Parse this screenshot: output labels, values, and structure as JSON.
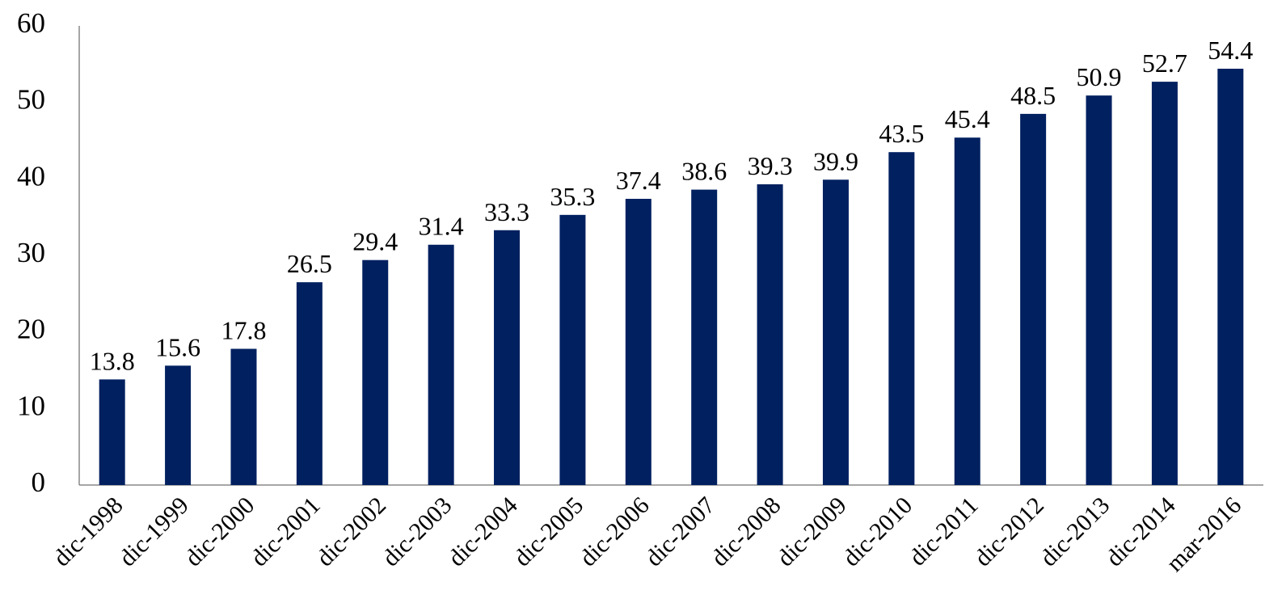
{
  "chart_data": {
    "type": "bar",
    "categories": [
      "dic-1998",
      "dic-1999",
      "dic-2000",
      "dic-2001",
      "dic-2002",
      "dic-2003",
      "dic-2004",
      "dic-2005",
      "dic-2006",
      "dic-2007",
      "dic-2008",
      "dic-2009",
      "dic-2010",
      "dic-2011",
      "dic-2012",
      "dic-2013",
      "dic-2014",
      "mar-2016"
    ],
    "values": [
      13.8,
      15.6,
      17.8,
      26.5,
      29.4,
      31.4,
      33.3,
      35.3,
      37.4,
      38.6,
      39.3,
      39.9,
      43.5,
      45.4,
      48.5,
      50.9,
      52.7,
      54.4
    ],
    "color": "#002060",
    "ylim": [
      0,
      60
    ],
    "yticks": [
      0,
      10,
      20,
      30,
      40,
      50,
      60
    ],
    "grid": false
  }
}
